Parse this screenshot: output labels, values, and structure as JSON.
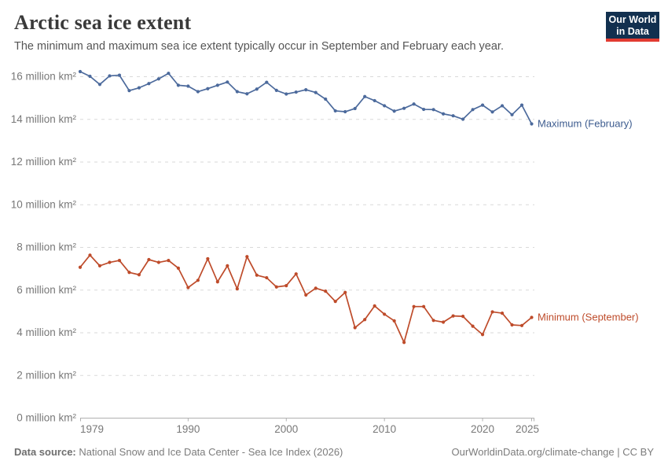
{
  "header": {
    "title": "Arctic sea ice extent",
    "subtitle": "The minimum and maximum sea ice extent typically occur in September and February each year."
  },
  "logo": {
    "line1": "Our World",
    "line2": "in Data",
    "bg_color": "#12304f",
    "accent_color": "#e23b31"
  },
  "chart_data": {
    "type": "line",
    "title": "Arctic sea ice extent",
    "x": [
      1979,
      1980,
      1981,
      1982,
      1983,
      1984,
      1985,
      1986,
      1987,
      1988,
      1989,
      1990,
      1991,
      1992,
      1993,
      1994,
      1995,
      1996,
      1997,
      1998,
      1999,
      2000,
      2001,
      2002,
      2003,
      2004,
      2005,
      2006,
      2007,
      2008,
      2009,
      2010,
      2011,
      2012,
      2013,
      2014,
      2015,
      2016,
      2017,
      2018,
      2019,
      2020,
      2021,
      2022,
      2023,
      2024,
      2025
    ],
    "series": [
      {
        "name": "Maximum (February)",
        "color": "#4c6a9c",
        "label_color": "#3d5c8f",
        "values": [
          16.22,
          16.0,
          15.62,
          16.02,
          16.05,
          15.33,
          15.46,
          15.66,
          15.88,
          16.14,
          15.58,
          15.54,
          15.28,
          15.42,
          15.58,
          15.73,
          15.28,
          15.18,
          15.4,
          15.72,
          15.34,
          15.17,
          15.26,
          15.37,
          15.24,
          14.93,
          14.38,
          14.34,
          14.49,
          15.05,
          14.86,
          14.62,
          14.37,
          14.5,
          14.7,
          14.45,
          14.44,
          14.24,
          14.15,
          13.99,
          14.44,
          14.65,
          14.33,
          14.62,
          14.2,
          14.65,
          13.77
        ]
      },
      {
        "name": "Minimum (September)",
        "color": "#be4b2a",
        "label_color": "#be4b2a",
        "values": [
          7.05,
          7.62,
          7.12,
          7.28,
          7.37,
          6.81,
          6.7,
          7.41,
          7.28,
          7.37,
          7.01,
          6.1,
          6.44,
          7.45,
          6.37,
          7.12,
          6.04,
          7.55,
          6.68,
          6.56,
          6.13,
          6.19,
          6.74,
          5.75,
          6.07,
          5.93,
          5.45,
          5.87,
          4.22,
          4.6,
          5.24,
          4.85,
          4.54,
          3.53,
          5.21,
          5.21,
          4.56,
          4.48,
          4.77,
          4.75,
          4.29,
          3.9,
          4.96,
          4.9,
          4.35,
          4.32,
          4.7
        ]
      }
    ],
    "xticks": [
      1979,
      1990,
      2000,
      2010,
      2020,
      2025
    ],
    "yticks": [
      0,
      2,
      4,
      6,
      8,
      10,
      12,
      14,
      16
    ],
    "ytick_suffix": " million km²",
    "xlim": [
      1979,
      2025
    ],
    "ylim": [
      0,
      16
    ],
    "grid": "horizontal-dashed",
    "legend_position": "line-end-labels"
  },
  "footer": {
    "source_label": "Data source:",
    "source_text": " National Snow and Ice Data Center - Sea Ice Index (2026)",
    "right_link": "OurWorldinData.org/climate-change",
    "right_suffix": " | CC BY"
  }
}
